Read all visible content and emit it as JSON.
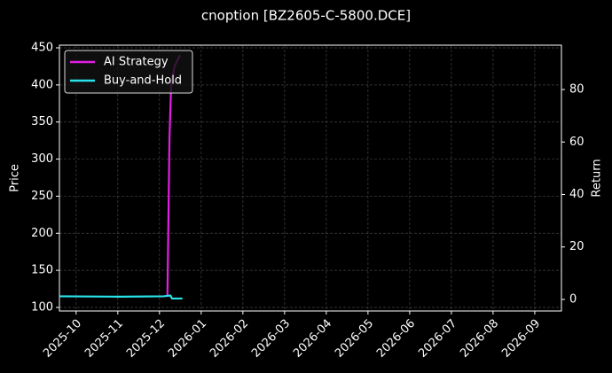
{
  "chart_data": {
    "type": "line",
    "title": "cnoption [BZ2605-C-5800.DCE]",
    "ylabel": "Price",
    "y2label": "Return",
    "xlim": [
      -0.4,
      11.64
    ],
    "xticks": [
      {
        "value": 0,
        "label": "2025-10"
      },
      {
        "value": 1,
        "label": "2025-11"
      },
      {
        "value": 2,
        "label": "2025-12"
      },
      {
        "value": 3,
        "label": "2026-01"
      },
      {
        "value": 4,
        "label": "2026-02"
      },
      {
        "value": 5,
        "label": "2026-03"
      },
      {
        "value": 6,
        "label": "2026-04"
      },
      {
        "value": 7,
        "label": "2026-05"
      },
      {
        "value": 8,
        "label": "2026-06"
      },
      {
        "value": 9,
        "label": "2026-07"
      },
      {
        "value": 10,
        "label": "2026-08"
      },
      {
        "value": 11,
        "label": "2026-09"
      }
    ],
    "ylim": [
      95.2,
      453.6
    ],
    "yticks": [
      100,
      150,
      200,
      250,
      300,
      350,
      400,
      450
    ],
    "y2lim": [
      -4.4,
      96.9
    ],
    "y2ticks": [
      0,
      20,
      40,
      60,
      80
    ],
    "grid": true,
    "legend": "upper left",
    "series": [
      {
        "name": "AI Strategy",
        "color": "#e41ee4",
        "x": [
          2.19,
          2.24,
          2.28,
          2.36,
          2.49
        ],
        "values": [
          116,
          330,
          400,
          425,
          440
        ]
      },
      {
        "name": "Buy-and-Hold",
        "color": "#29e3ea",
        "x": [
          -0.4,
          1.0,
          2.1,
          2.26,
          2.3,
          2.55
        ],
        "values": [
          115,
          114.5,
          115,
          116,
          112,
          112
        ]
      }
    ]
  }
}
